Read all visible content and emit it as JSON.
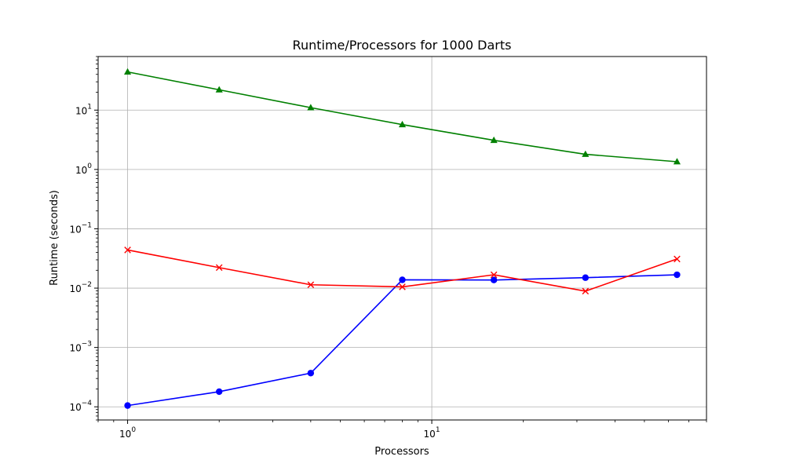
{
  "chart_data": {
    "type": "line",
    "title": "Runtime/Processors for 1000 Darts",
    "xlabel": "Processors",
    "ylabel": "Runtime (seconds)",
    "xscale": "log",
    "yscale": "log",
    "xlim": [
      0.8,
      80
    ],
    "ylim": [
      6e-05,
      80
    ],
    "grid": true,
    "x": [
      1,
      2,
      4,
      8,
      16,
      32,
      64
    ],
    "x_ticks": [
      {
        "value": 1,
        "base": "10",
        "exp": "0"
      },
      {
        "value": 10,
        "base": "10",
        "exp": "1"
      }
    ],
    "y_ticks": [
      {
        "value": 0.0001,
        "base": "10",
        "exp": "−4"
      },
      {
        "value": 0.001,
        "base": "10",
        "exp": "−3"
      },
      {
        "value": 0.01,
        "base": "10",
        "exp": "−2"
      },
      {
        "value": 0.1,
        "base": "10",
        "exp": "−1"
      },
      {
        "value": 1,
        "base": "10",
        "exp": "0"
      },
      {
        "value": 10,
        "base": "10",
        "exp": "1"
      }
    ],
    "series": [
      {
        "color": "#0000ff",
        "marker": "circle",
        "values": [
          0.000105,
          0.00018,
          0.00037,
          0.0138,
          0.0137,
          0.015,
          0.0168
        ]
      },
      {
        "color": "#ff0000",
        "marker": "x",
        "values": [
          0.044,
          0.0222,
          0.0114,
          0.0105,
          0.0168,
          0.0089,
          0.031
        ]
      },
      {
        "color": "#008000",
        "marker": "triangle",
        "values": [
          44,
          22,
          11,
          5.7,
          3.1,
          1.8,
          1.35
        ]
      }
    ]
  }
}
